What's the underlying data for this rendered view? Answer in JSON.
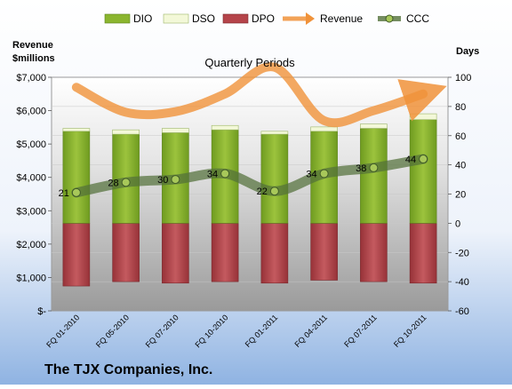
{
  "chart_data": {
    "type": "bar",
    "title": "Quarterly Periods",
    "company": "The TJX Companies, Inc.",
    "left_axis_label_line1": "Revenue",
    "left_axis_label_line2": "$millions",
    "right_axis_label": "Days",
    "categories": [
      "FQ 01-2010",
      "FQ 05-2010",
      "FQ 07-2010",
      "FQ 10-2010",
      "FQ 01-2011",
      "FQ 04-2011",
      "FQ 07-2011",
      "FQ 10-2011"
    ],
    "left_axis": {
      "min": 0,
      "max": 7000,
      "step": 1000,
      "tick_labels": [
        "$-",
        "$1,000",
        "$2,000",
        "$3,000",
        "$4,000",
        "$5,000",
        "$6,000",
        "$7,000"
      ]
    },
    "right_axis": {
      "min": -60,
      "max": 100,
      "step": 20,
      "tick_labels": [
        "-60",
        "-40",
        "-20",
        "0",
        "20",
        "40",
        "60",
        "80",
        "100"
      ]
    },
    "series": [
      {
        "name": "DIO",
        "axis": "days",
        "kind": "stacked-bar",
        "color": "#8BB52F",
        "values": [
          63,
          61,
          62,
          64,
          61,
          63,
          65,
          71
        ]
      },
      {
        "name": "DSO",
        "axis": "days",
        "kind": "stacked-bar",
        "color": "#F3F8D8",
        "values": [
          2,
          3,
          3,
          3,
          2,
          3,
          3,
          4
        ]
      },
      {
        "name": "DPO",
        "axis": "days",
        "kind": "negative-bar",
        "color": "#B5444A",
        "values": [
          -43,
          -40,
          -41,
          -40,
          -41,
          -39,
          -40,
          -41
        ]
      },
      {
        "name": "Revenue",
        "axis": "revenue",
        "kind": "arrow-line",
        "color": "#F0923A",
        "values": [
          6700,
          5950,
          5970,
          6500,
          7300,
          5700,
          6000,
          6500
        ]
      },
      {
        "name": "CCC",
        "axis": "days",
        "kind": "line-markers",
        "color": "#53703A",
        "values": [
          21,
          28,
          30,
          34,
          22,
          34,
          38,
          44
        ],
        "labels": [
          "21",
          "28",
          "30",
          "34",
          "22",
          "34",
          "38",
          "44"
        ]
      }
    ],
    "legend": [
      "DIO",
      "DSO",
      "DPO",
      "Revenue",
      "CCC"
    ],
    "legend_position": "top"
  }
}
